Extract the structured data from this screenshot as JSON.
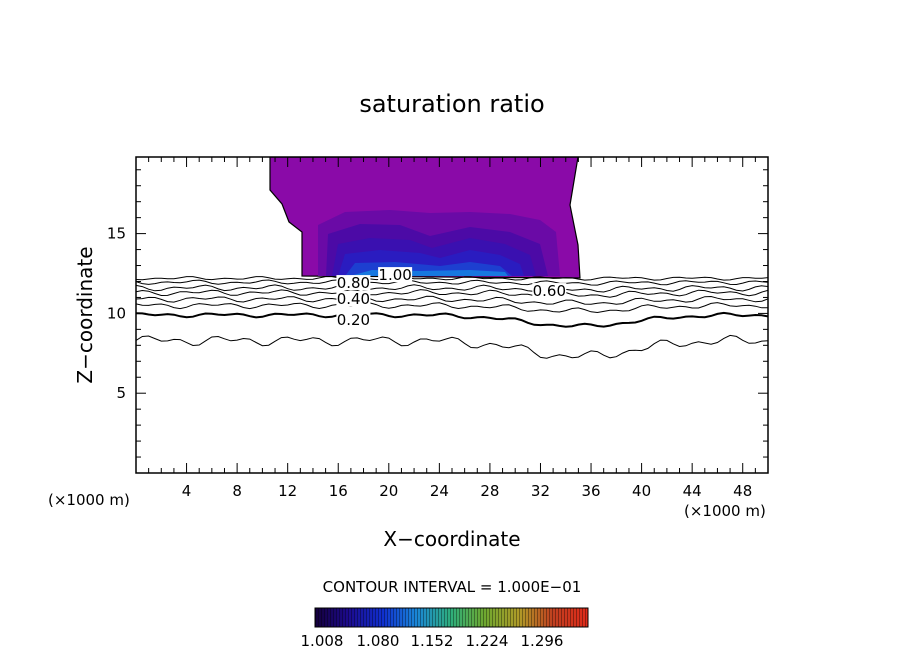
{
  "chart_data": {
    "type": "contour",
    "title": "saturation ratio",
    "xlabel": "X−coordinate",
    "ylabel": "Z−coordinate",
    "x_unit": "(×1000 m)",
    "xlim": [
      0,
      50
    ],
    "ylim": [
      0,
      19.8
    ],
    "x_ticks": [
      4,
      8,
      12,
      16,
      20,
      24,
      28,
      32,
      36,
      40,
      44,
      48
    ],
    "y_ticks": [
      5,
      10,
      15
    ],
    "contour_interval_text": "CONTOUR INTERVAL = 1.000E−01",
    "contour_labels": [
      {
        "text": "1.00",
        "x": 20.5,
        "z": 12.4
      },
      {
        "text": "0.80",
        "x": 17.2,
        "z": 11.9
      },
      {
        "text": "0.60",
        "x": 32.7,
        "z": 11.4
      },
      {
        "text": "0.40",
        "x": 17.2,
        "z": 10.9
      },
      {
        "text": "0.20",
        "x": 17.2,
        "z": 9.6
      }
    ],
    "colorbar": {
      "tick_labels": [
        "1.008",
        "1.080",
        "1.152",
        "1.224",
        "1.296"
      ]
    }
  }
}
